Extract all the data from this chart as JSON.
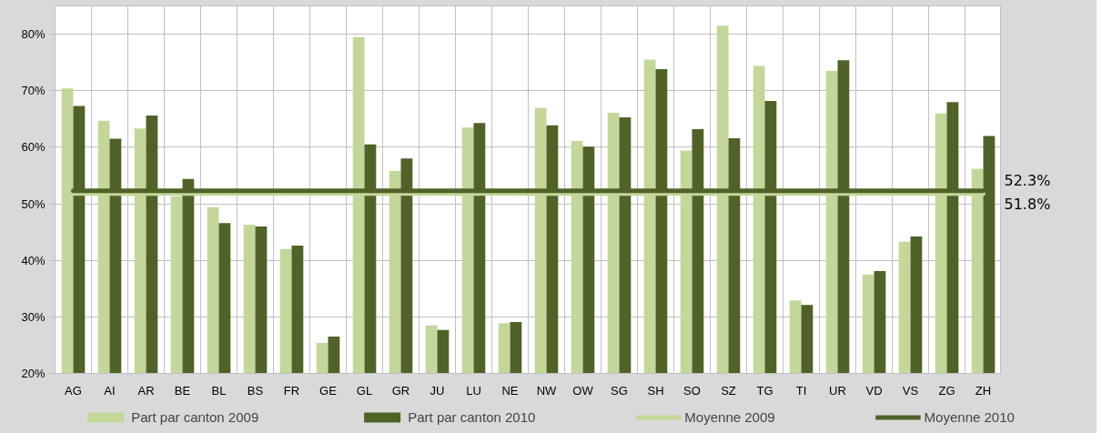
{
  "chart_data": {
    "type": "bar",
    "categories": [
      "AG",
      "AI",
      "AR",
      "BE",
      "BL",
      "BS",
      "FR",
      "GE",
      "GL",
      "GR",
      "JU",
      "LU",
      "NE",
      "NW",
      "OW",
      "SG",
      "SH",
      "SO",
      "SZ",
      "TG",
      "TI",
      "UR",
      "VD",
      "VS",
      "ZG",
      "ZH"
    ],
    "series": [
      {
        "name": "Part par canton 2009",
        "color": "#c4d79b",
        "values": [
          70.4,
          64.7,
          63.3,
          51.3,
          49.4,
          46.3,
          42.0,
          25.4,
          79.5,
          55.8,
          28.5,
          63.5,
          28.9,
          67.0,
          61.1,
          66.1,
          75.5,
          59.4,
          81.5,
          74.4,
          32.9,
          73.5,
          37.5,
          43.3,
          66.0,
          56.2
        ]
      },
      {
        "name": "Part par canton 2010",
        "color": "#4f6228",
        "values": [
          67.3,
          61.5,
          65.6,
          54.4,
          46.6,
          46.0,
          42.6,
          26.5,
          60.5,
          58.0,
          27.7,
          64.3,
          29.1,
          63.9,
          60.1,
          65.3,
          73.8,
          63.2,
          61.6,
          68.2,
          32.1,
          75.4,
          38.1,
          44.2,
          68.0,
          62.0
        ]
      },
      {
        "name": "Moyenne 2009",
        "type": "line",
        "color": "#c4d79b",
        "values": [
          51.8,
          51.8,
          51.8,
          51.8,
          51.8,
          51.8,
          51.8,
          51.8,
          51.8,
          51.8,
          51.8,
          51.8,
          51.8,
          51.8,
          51.8,
          51.8,
          51.8,
          51.8,
          51.8,
          51.8,
          51.8,
          51.8,
          51.8,
          51.8,
          51.8,
          51.8
        ],
        "value_labels": [
          null,
          null,
          null,
          null,
          null,
          null,
          null,
          null,
          null,
          null,
          null,
          null,
          null,
          null,
          null,
          null,
          null,
          null,
          null,
          null,
          null,
          null,
          null,
          null,
          null,
          "51.8%"
        ]
      },
      {
        "name": "Moyenne 2010",
        "type": "line",
        "color": "#4f6228",
        "values": [
          52.3,
          52.3,
          52.3,
          52.3,
          52.3,
          52.3,
          52.3,
          52.3,
          52.3,
          52.3,
          52.3,
          52.3,
          52.3,
          52.3,
          52.3,
          52.3,
          52.3,
          52.3,
          52.3,
          52.3,
          52.3,
          52.3,
          52.3,
          52.3,
          52.3,
          52.3
        ],
        "value_labels": [
          null,
          null,
          null,
          null,
          null,
          null,
          null,
          null,
          null,
          null,
          null,
          null,
          null,
          null,
          null,
          null,
          null,
          null,
          null,
          null,
          null,
          null,
          null,
          null,
          null,
          "52.3%"
        ]
      }
    ],
    "ylim": [
      20,
      85
    ],
    "yticks": [
      {
        "value": 20,
        "label": "20%"
      },
      {
        "value": 30,
        "label": "30%"
      },
      {
        "value": 40,
        "label": "40%"
      },
      {
        "value": 50,
        "label": "50%"
      },
      {
        "value": 60,
        "label": "60%"
      },
      {
        "value": 70,
        "label": "70%"
      },
      {
        "value": 80,
        "label": "80%"
      }
    ],
    "grid": true,
    "legend": "bottom",
    "line_style": "solid"
  }
}
